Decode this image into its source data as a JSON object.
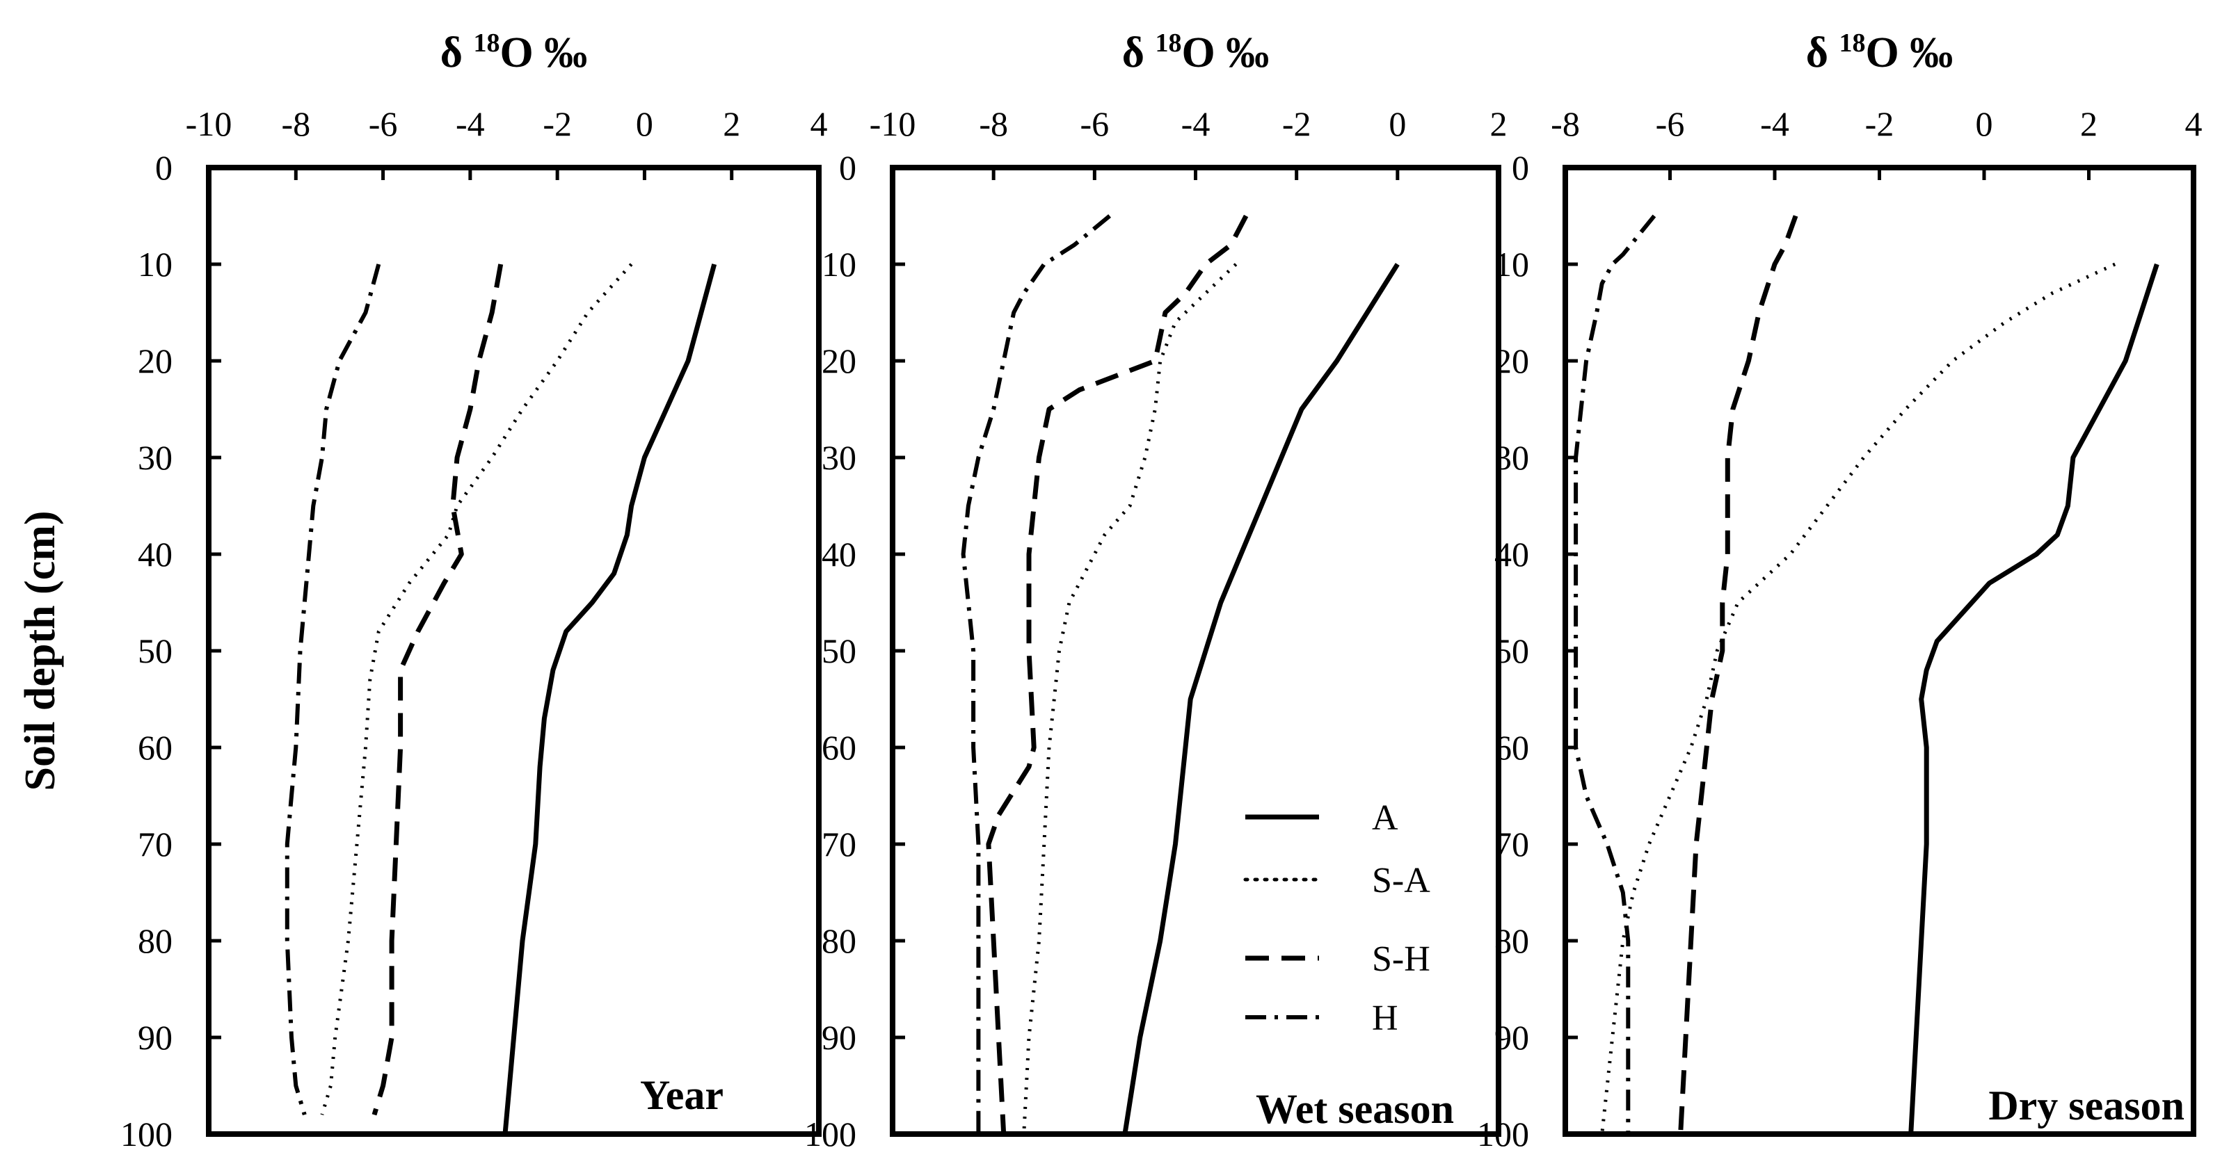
{
  "chart_data": [
    {
      "type": "line",
      "orientation": "profile",
      "title": "δ 18O ‰",
      "title_main": "δ ",
      "title_sup": "18",
      "title_rest": "O ‰",
      "panel_label": "Year",
      "xlim": [
        -10,
        4
      ],
      "xticks": [
        -10,
        -8,
        -6,
        -4,
        -2,
        0,
        2,
        4
      ],
      "ylim": [
        0,
        100
      ],
      "yticks": [
        0,
        10,
        20,
        30,
        40,
        50,
        60,
        70,
        80,
        90,
        100
      ],
      "ylabel": "Soil depth (cm)",
      "series": [
        {
          "name": "A",
          "style": "solid",
          "points": [
            [
              1.6,
              10
            ],
            [
              1.3,
              15
            ],
            [
              1.0,
              20
            ],
            [
              0.5,
              25
            ],
            [
              0.0,
              30
            ],
            [
              -0.3,
              35
            ],
            [
              -0.4,
              38
            ],
            [
              -0.7,
              42
            ],
            [
              -1.2,
              45
            ],
            [
              -1.8,
              48
            ],
            [
              -2.1,
              52
            ],
            [
              -2.3,
              57
            ],
            [
              -2.4,
              62
            ],
            [
              -2.5,
              70
            ],
            [
              -2.8,
              80
            ],
            [
              -3.0,
              90
            ],
            [
              -3.2,
              100
            ]
          ]
        },
        {
          "name": "S-A",
          "style": "dotted",
          "points": [
            [
              -0.3,
              10
            ],
            [
              -1.3,
              15
            ],
            [
              -2.0,
              20
            ],
            [
              -2.8,
              25
            ],
            [
              -3.5,
              30
            ],
            [
              -4.3,
              35
            ],
            [
              -4.5,
              38
            ],
            [
              -5.4,
              43
            ],
            [
              -6.1,
              48
            ],
            [
              -6.3,
              53
            ],
            [
              -6.4,
              60
            ],
            [
              -6.6,
              70
            ],
            [
              -6.8,
              80
            ],
            [
              -7.1,
              90
            ],
            [
              -7.2,
              95
            ],
            [
              -7.4,
              98
            ]
          ]
        },
        {
          "name": "S-H",
          "style": "dashed",
          "points": [
            [
              -3.3,
              10
            ],
            [
              -3.5,
              15
            ],
            [
              -3.8,
              20
            ],
            [
              -4.0,
              25
            ],
            [
              -4.3,
              30
            ],
            [
              -4.4,
              35
            ],
            [
              -4.2,
              40
            ],
            [
              -4.6,
              43
            ],
            [
              -5.2,
              48
            ],
            [
              -5.6,
              52
            ],
            [
              -5.6,
              60
            ],
            [
              -5.7,
              70
            ],
            [
              -5.8,
              80
            ],
            [
              -5.8,
              90
            ],
            [
              -6.0,
              95
            ],
            [
              -6.2,
              98
            ]
          ]
        },
        {
          "name": "H",
          "style": "dash-dot",
          "points": [
            [
              -6.1,
              10
            ],
            [
              -6.4,
              15
            ],
            [
              -7.0,
              20
            ],
            [
              -7.3,
              25
            ],
            [
              -7.4,
              30
            ],
            [
              -7.6,
              35
            ],
            [
              -7.7,
              40
            ],
            [
              -7.8,
              45
            ],
            [
              -7.9,
              50
            ],
            [
              -8.0,
              60
            ],
            [
              -8.1,
              65
            ],
            [
              -8.2,
              70
            ],
            [
              -8.2,
              80
            ],
            [
              -8.1,
              90
            ],
            [
              -8.0,
              95
            ],
            [
              -7.8,
              98
            ]
          ]
        }
      ]
    },
    {
      "type": "line",
      "orientation": "profile",
      "title": "δ 18O ‰",
      "title_main": "δ ",
      "title_sup": "18",
      "title_rest": "O ‰",
      "panel_label": "Wet season",
      "xlim": [
        -10,
        2
      ],
      "xticks": [
        -10,
        -8,
        -6,
        -4,
        -2,
        0,
        2
      ],
      "ylim": [
        0,
        100
      ],
      "yticks": [
        0,
        10,
        20,
        30,
        40,
        50,
        60,
        70,
        80,
        90,
        100
      ],
      "legend": {
        "placement": "lower-right",
        "entries": [
          "A",
          "S-A",
          "S-H",
          "H"
        ]
      },
      "series": [
        {
          "name": "A",
          "style": "solid",
          "points": [
            [
              0.0,
              10
            ],
            [
              -0.6,
              15
            ],
            [
              -1.2,
              20
            ],
            [
              -1.9,
              25
            ],
            [
              -2.3,
              30
            ],
            [
              -2.7,
              35
            ],
            [
              -3.1,
              40
            ],
            [
              -3.5,
              45
            ],
            [
              -3.8,
              50
            ],
            [
              -4.1,
              55
            ],
            [
              -4.2,
              60
            ],
            [
              -4.4,
              70
            ],
            [
              -4.7,
              80
            ],
            [
              -5.1,
              90
            ],
            [
              -5.4,
              100
            ]
          ]
        },
        {
          "name": "S-A",
          "style": "dotted",
          "points": [
            [
              -3.2,
              10
            ],
            [
              -3.8,
              13
            ],
            [
              -4.4,
              16
            ],
            [
              -4.7,
              20
            ],
            [
              -4.8,
              25
            ],
            [
              -5.0,
              30
            ],
            [
              -5.3,
              35
            ],
            [
              -5.8,
              38
            ],
            [
              -6.2,
              42
            ],
            [
              -6.5,
              45
            ],
            [
              -6.7,
              50
            ],
            [
              -6.8,
              55
            ],
            [
              -6.9,
              60
            ],
            [
              -7.0,
              70
            ],
            [
              -7.1,
              80
            ],
            [
              -7.3,
              90
            ],
            [
              -7.4,
              100
            ]
          ]
        },
        {
          "name": "S-H",
          "style": "dashed",
          "points": [
            [
              -3.0,
              5
            ],
            [
              -3.3,
              8
            ],
            [
              -3.8,
              10
            ],
            [
              -4.2,
              13
            ],
            [
              -4.6,
              15
            ],
            [
              -4.8,
              20
            ],
            [
              -5.3,
              21
            ],
            [
              -6.3,
              23
            ],
            [
              -6.9,
              25
            ],
            [
              -7.1,
              30
            ],
            [
              -7.3,
              40
            ],
            [
              -7.3,
              50
            ],
            [
              -7.2,
              60
            ],
            [
              -7.3,
              62
            ],
            [
              -7.9,
              67
            ],
            [
              -8.1,
              70
            ],
            [
              -8.0,
              80
            ],
            [
              -7.9,
              90
            ],
            [
              -7.8,
              100
            ]
          ]
        },
        {
          "name": "H",
          "style": "dash-dot",
          "points": [
            [
              -5.7,
              5
            ],
            [
              -6.4,
              8
            ],
            [
              -7.0,
              10
            ],
            [
              -7.4,
              13
            ],
            [
              -7.6,
              15
            ],
            [
              -7.8,
              20
            ],
            [
              -8.0,
              25
            ],
            [
              -8.3,
              30
            ],
            [
              -8.5,
              35
            ],
            [
              -8.6,
              40
            ],
            [
              -8.5,
              45
            ],
            [
              -8.4,
              50
            ],
            [
              -8.4,
              60
            ],
            [
              -8.3,
              70
            ],
            [
              -8.3,
              80
            ],
            [
              -8.3,
              90
            ],
            [
              -8.3,
              100
            ]
          ]
        }
      ]
    },
    {
      "type": "line",
      "orientation": "profile",
      "title": "δ 18O ‰",
      "title_main": "δ ",
      "title_sup": "18",
      "title_rest": "O ‰",
      "panel_label": "Dry season",
      "xlim": [
        -8,
        4
      ],
      "xticks": [
        -8,
        -6,
        -4,
        -2,
        0,
        2,
        4
      ],
      "ylim": [
        0,
        100
      ],
      "yticks": [
        0,
        10,
        20,
        30,
        40,
        50,
        60,
        70,
        80,
        90,
        100
      ],
      "series": [
        {
          "name": "A",
          "style": "solid",
          "points": [
            [
              3.3,
              10
            ],
            [
              3.0,
              15
            ],
            [
              2.7,
              20
            ],
            [
              2.2,
              25
            ],
            [
              1.7,
              30
            ],
            [
              1.6,
              35
            ],
            [
              1.4,
              38
            ],
            [
              1.0,
              40
            ],
            [
              0.1,
              43
            ],
            [
              -0.4,
              46
            ],
            [
              -0.9,
              49
            ],
            [
              -1.1,
              52
            ],
            [
              -1.2,
              55
            ],
            [
              -1.1,
              60
            ],
            [
              -1.1,
              70
            ],
            [
              -1.2,
              80
            ],
            [
              -1.3,
              90
            ],
            [
              -1.4,
              100
            ]
          ]
        },
        {
          "name": "S-A",
          "style": "dotted",
          "points": [
            [
              2.5,
              10
            ],
            [
              1.3,
              13
            ],
            [
              0.4,
              16
            ],
            [
              -0.6,
              20
            ],
            [
              -1.5,
              25
            ],
            [
              -2.3,
              30
            ],
            [
              -3.0,
              35
            ],
            [
              -3.7,
              40
            ],
            [
              -4.3,
              43
            ],
            [
              -4.7,
              45
            ],
            [
              -5.1,
              50
            ],
            [
              -5.3,
              55
            ],
            [
              -5.6,
              60
            ],
            [
              -6.0,
              65
            ],
            [
              -6.4,
              70
            ],
            [
              -6.7,
              75
            ],
            [
              -6.9,
              80
            ],
            [
              -7.1,
              90
            ],
            [
              -7.2,
              95
            ],
            [
              -7.3,
              100
            ]
          ]
        },
        {
          "name": "S-H",
          "style": "dashed",
          "points": [
            [
              -3.6,
              5
            ],
            [
              -3.8,
              8
            ],
            [
              -4.0,
              10
            ],
            [
              -4.3,
              15
            ],
            [
              -4.5,
              20
            ],
            [
              -4.8,
              25
            ],
            [
              -4.9,
              30
            ],
            [
              -4.9,
              35
            ],
            [
              -4.9,
              40
            ],
            [
              -5.0,
              45
            ],
            [
              -5.0,
              50
            ],
            [
              -5.2,
              55
            ],
            [
              -5.3,
              60
            ],
            [
              -5.4,
              65
            ],
            [
              -5.5,
              70
            ],
            [
              -5.6,
              80
            ],
            [
              -5.7,
              90
            ],
            [
              -5.8,
              100
            ]
          ]
        },
        {
          "name": "H",
          "style": "dash-dot",
          "points": [
            [
              -6.3,
              5
            ],
            [
              -6.6,
              7
            ],
            [
              -6.9,
              9
            ],
            [
              -7.1,
              10
            ],
            [
              -7.3,
              12
            ],
            [
              -7.4,
              15
            ],
            [
              -7.6,
              20
            ],
            [
              -7.7,
              25
            ],
            [
              -7.8,
              30
            ],
            [
              -7.8,
              40
            ],
            [
              -7.8,
              50
            ],
            [
              -7.8,
              60
            ],
            [
              -7.6,
              65
            ],
            [
              -7.2,
              70
            ],
            [
              -6.9,
              75
            ],
            [
              -6.8,
              80
            ],
            [
              -6.8,
              90
            ],
            [
              -6.8,
              100
            ]
          ]
        }
      ]
    }
  ]
}
